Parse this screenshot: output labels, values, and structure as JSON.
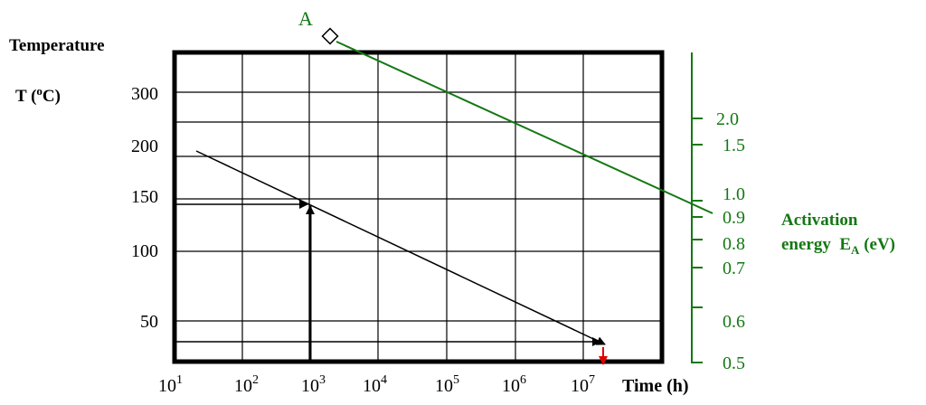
{
  "chart_data": {
    "type": "line",
    "title": "",
    "y_left_title_line1": "Temperature",
    "y_left_title_line2_prefix": "T (",
    "y_left_title_line2_sup": "o",
    "y_left_title_line2_suffix": "C)",
    "y_left_ticks": [
      "300",
      "200",
      "150",
      "100",
      "50"
    ],
    "x_axis_label": "Time (h)",
    "x_ticks": [
      {
        "base": "10",
        "exp": "1"
      },
      {
        "base": "10",
        "exp": "2"
      },
      {
        "base": "10",
        "exp": "3"
      },
      {
        "base": "10",
        "exp": "4"
      },
      {
        "base": "10",
        "exp": "5"
      },
      {
        "base": "10",
        "exp": "6"
      },
      {
        "base": "10",
        "exp": "7"
      }
    ],
    "x_scale": "log",
    "right_axis_label_line1": "Activation",
    "right_axis_label_line2_prefix": "energy  E",
    "right_axis_label_line2_sub": "A",
    "right_axis_label_line2_suffix": " (eV)",
    "right_axis_ticks": [
      "2.0",
      "1.5",
      "1.0",
      "0.9",
      "0.8",
      "0.7",
      "0.6",
      "0.5"
    ],
    "pivot_label": "A",
    "colors": {
      "frame": "#000000",
      "activation_axis": "#147814",
      "activation_line": "#147814",
      "temperature_line": "#000000",
      "highlight_arrow": "#e00000"
    },
    "grid": true
  }
}
